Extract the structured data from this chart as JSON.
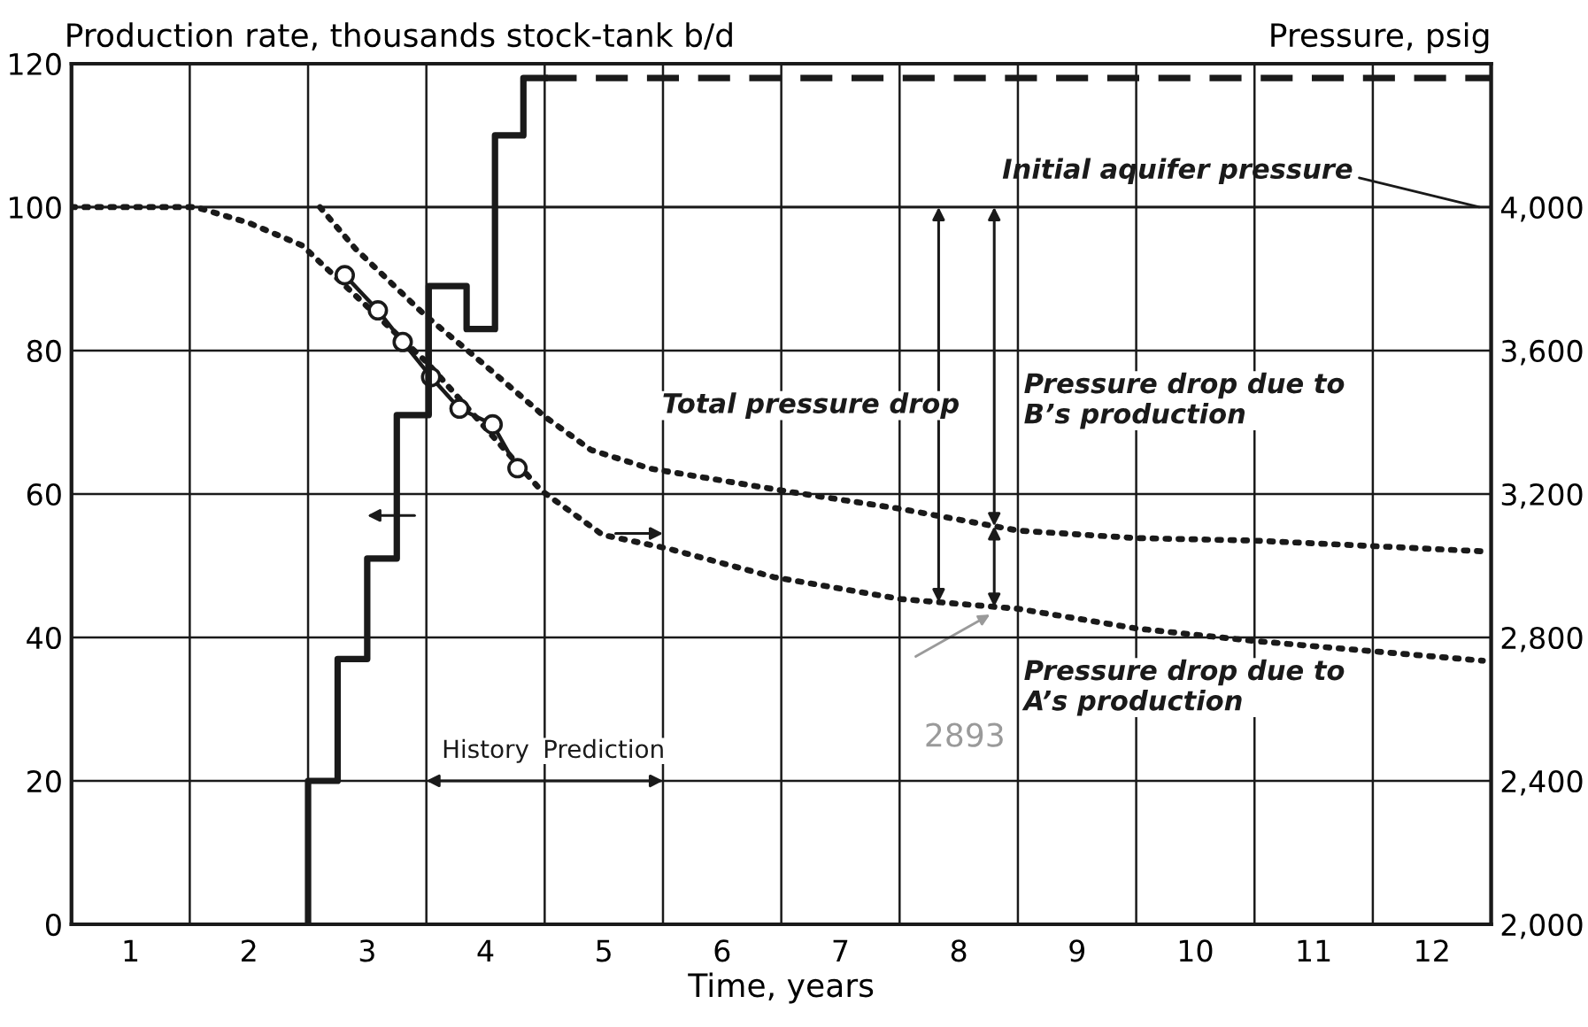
{
  "chart_data": {
    "type": "line",
    "xlabel": "Time, years",
    "ylabel": "Production rate, thousands stock-tank b/d",
    "y2label": "Pressure, psig",
    "xlim": [
      0.5,
      12.5
    ],
    "xticks": [
      {
        "value": 1,
        "label": "1"
      },
      {
        "value": 2,
        "label": "2"
      },
      {
        "value": 3,
        "label": "3"
      },
      {
        "value": 4,
        "label": "4"
      },
      {
        "value": 5,
        "label": "5"
      },
      {
        "value": 6,
        "label": "6"
      },
      {
        "value": 7,
        "label": "7"
      },
      {
        "value": 8,
        "label": "8"
      },
      {
        "value": 9,
        "label": "9"
      },
      {
        "value": 10,
        "label": "10"
      },
      {
        "value": 11,
        "label": "11"
      },
      {
        "value": 12,
        "label": "12"
      },
      {
        "value": 1.5,
        "label": null
      },
      {
        "value": 2.5,
        "label": null
      },
      {
        "value": 3.5,
        "label": null
      },
      {
        "value": 4.5,
        "label": null
      },
      {
        "value": 5.5,
        "label": null
      },
      {
        "value": 6.5,
        "label": null
      },
      {
        "value": 7.5,
        "label": null
      },
      {
        "value": 8.5,
        "label": null
      },
      {
        "value": 9.5,
        "label": null
      },
      {
        "value": 10.5,
        "label": null
      },
      {
        "value": 11.5,
        "label": null
      }
    ],
    "ylim": [
      0,
      120
    ],
    "yticks": [
      0,
      20,
      40,
      60,
      80,
      100,
      120
    ],
    "y2lim": [
      2000,
      4400
    ],
    "y2ticks": [
      {
        "value": 2000,
        "label": "2,000"
      },
      {
        "value": 2400,
        "label": "2,400"
      },
      {
        "value": 2800,
        "label": "2,800"
      },
      {
        "value": 3200,
        "label": "3,200"
      },
      {
        "value": 3600,
        "label": "3,600"
      },
      {
        "value": 4000,
        "label": "4,000"
      }
    ],
    "grid": true,
    "series": [
      {
        "type": "step",
        "color": "#1a1a1a",
        "line_style": "solid",
        "x": [
          2.5,
          2.5,
          2.75,
          3.0,
          3.25,
          3.52,
          3.84,
          4.08,
          4.32,
          4.5
        ],
        "values": [
          0,
          20,
          37,
          51,
          71,
          89,
          83,
          110,
          118,
          118
        ]
      },
      {
        "type": "step",
        "color": "#1a1a1a",
        "line_style": "dashed",
        "x": [
          4.5,
          12.5
        ],
        "values": [
          118,
          118
        ]
      },
      {
        "axis": "y2",
        "color": "#1a1a1a",
        "line_style": "solid",
        "marker": "circle",
        "x": [
          2.81,
          3.09,
          3.3,
          3.54,
          3.78,
          4.06,
          4.27
        ],
        "values": [
          3810,
          3712,
          3624,
          3526,
          3438,
          3394,
          3272
        ]
      },
      {
        "axis": "y2",
        "color": "#1a1a1a",
        "line_style": "dotted",
        "x": [
          0.5,
          1.55,
          2.0,
          2.45,
          3.51,
          4.47,
          4.99,
          5.54,
          6.44,
          7.51,
          8.5,
          9.5,
          10.5,
          11.55,
          12.43
        ],
        "values": [
          4000,
          4000,
          3956,
          3893,
          3565,
          3210,
          3086,
          3048,
          2968,
          2907,
          2880,
          2825,
          2790,
          2760,
          2735
        ]
      },
      {
        "axis": "y2",
        "color": "#1a1a1a",
        "line_style": "dotted",
        "x": [
          2.6,
          2.9,
          3.49,
          3.9,
          4.5,
          4.89,
          5.39,
          6.59,
          7.5,
          8.5,
          9.5,
          10.5,
          11.55,
          12.43
        ],
        "values": [
          4000,
          3884,
          3698,
          3586,
          3416,
          3323,
          3271,
          3205,
          3159,
          3098,
          3077,
          3070,
          3054,
          3040
        ]
      }
    ],
    "ref_lines": [
      {
        "axis": "y2",
        "value": 4000,
        "label": "Initial aquifer pressure",
        "color": "#1a1a1a",
        "line_style": "solid"
      }
    ],
    "annotations": [
      "Total pressure drop",
      "Pressure drop due to\nB’s production",
      "Pressure drop due to\nA’s production",
      "History",
      "Prediction",
      "2893"
    ]
  }
}
